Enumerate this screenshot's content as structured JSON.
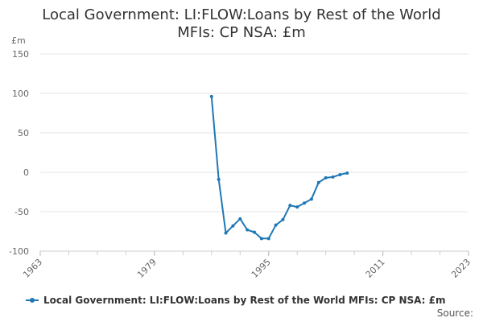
{
  "title_lines": [
    "Local Government: LI:FLOW:Loans by Rest of the World",
    "MFIs: CP NSA: £m"
  ],
  "unit": "£m",
  "source": "Source:",
  "chart_data": {
    "type": "line",
    "title": "Local Government: LI:FLOW:Loans by Rest of the World MFIs: CP NSA: £m",
    "ylabel": "£m",
    "xlim": [
      1963,
      2023
    ],
    "ylim": [
      -100,
      150
    ],
    "x_ticks": [
      1963,
      1979,
      1995,
      2011,
      2023
    ],
    "x_minor_tick_step": 4,
    "y_ticks": [
      -100,
      -50,
      0,
      50,
      100,
      150
    ],
    "grid": true,
    "legend_position": "bottom",
    "series": [
      {
        "name": "Local Government: LI:FLOW:Loans by Rest of the World MFIs: CP NSA: £m",
        "color": "#1f78b4",
        "x": [
          1987,
          1988,
          1989,
          1990,
          1991,
          1992,
          1993,
          1994,
          1995,
          1996,
          1997,
          1998,
          1999,
          2000,
          2001,
          2002,
          2003,
          2004,
          2005,
          2006
        ],
        "y": [
          96,
          -9,
          -77,
          -68,
          -59,
          -73,
          -76,
          -84,
          -84,
          -67,
          -60,
          -42,
          -44,
          -39,
          -34,
          -13,
          -7,
          -6,
          -3,
          -1
        ]
      }
    ]
  }
}
